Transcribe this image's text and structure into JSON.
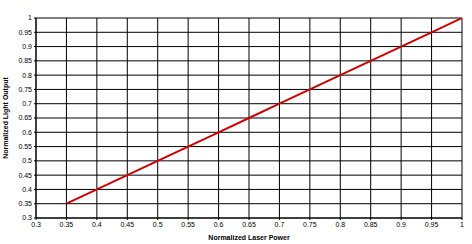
{
  "chart_data": {
    "type": "line",
    "x_label": "Normalized Laser Power",
    "y_label": "Normalized Light Output",
    "x": [
      0.35,
      0.4,
      0.45,
      0.5,
      0.55,
      0.6,
      0.65,
      0.7,
      0.75,
      0.8,
      0.85,
      0.9,
      0.95,
      1
    ],
    "values": [
      0.35,
      0.4,
      0.45,
      0.5,
      0.55,
      0.6,
      0.65,
      0.7,
      0.75,
      0.8,
      0.85,
      0.9,
      0.95,
      1
    ],
    "color": "#cc0000",
    "xlim": [
      0.3,
      1
    ],
    "xticks": [
      0.3,
      0.35,
      0.4,
      0.45,
      0.5,
      0.55,
      0.6,
      0.65,
      0.7,
      0.75,
      0.8,
      0.85,
      0.9,
      0.95,
      1
    ],
    "ylim": [
      0.3,
      1
    ],
    "yticks": [
      0.3,
      0.35,
      0.4,
      0.45,
      0.5,
      0.55,
      0.6,
      0.65,
      0.7,
      0.75,
      0.8,
      0.85,
      0.9,
      0.95,
      1
    ],
    "grid": true
  }
}
